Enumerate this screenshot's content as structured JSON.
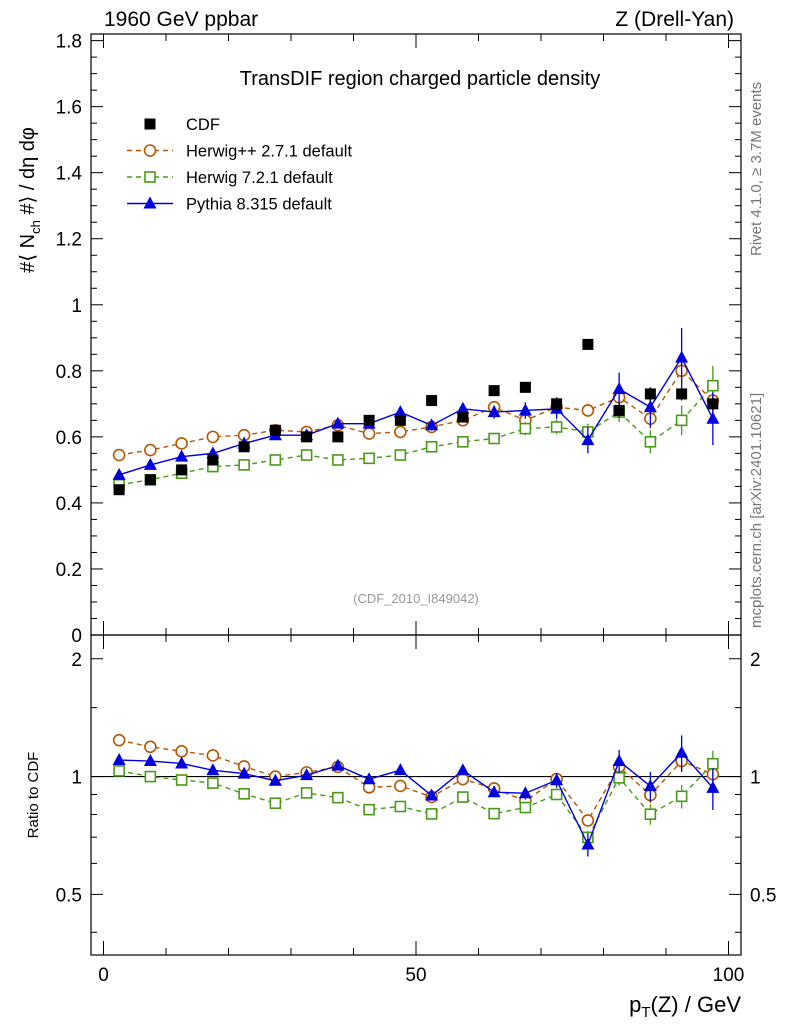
{
  "header": {
    "left": "1960 GeV ppbar",
    "right": "Z (Drell-Yan)"
  },
  "side_text": {
    "rivet": "Rivet 4.1.0, ≥ 3.7M events",
    "mcplots": "mcplots.cern.ch [arXiv:2401.10621]"
  },
  "chart_data": {
    "type": "scatter",
    "title": "TransDIF region charged particle density",
    "analysis_tag": "(CDF_2010_I849042)",
    "xlabel": "p_T(Z) / GeV",
    "ylabel": "#⟨ N_ch #⟩ / dη dφ",
    "ratio_ylabel": "Ratio to CDF",
    "xlim": [
      -2,
      102
    ],
    "ylim": [
      0,
      1.82
    ],
    "ratio_ylim": [
      0.35,
      2.3
    ],
    "x_ticks": [
      0,
      50,
      100
    ],
    "y_ticks": [
      0.2,
      0.4,
      0.6,
      0.8,
      1,
      1.2,
      1.4,
      1.6,
      1.8
    ],
    "ratio_ticks": [
      0.5,
      1,
      2
    ],
    "legend": [
      "CDF",
      "Herwig++ 2.7.1 default",
      "Herwig 7.2.1 default",
      "Pythia 8.315 default"
    ],
    "x": [
      2.5,
      7.5,
      12.5,
      17.5,
      22.5,
      27.5,
      32.5,
      37.5,
      42.5,
      47.5,
      52.5,
      57.5,
      62.5,
      67.5,
      72.5,
      77.5,
      82.5,
      87.5,
      92.5,
      97.5
    ],
    "series": [
      {
        "name": "CDF",
        "color": "#000000",
        "marker": "square-filled",
        "values": [
          0.44,
          0.47,
          0.5,
          0.53,
          0.57,
          0.62,
          0.6,
          0.6,
          0.65,
          0.65,
          0.71,
          0.66,
          0.74,
          0.75,
          0.7,
          0.88,
          0.68,
          0.73,
          0.73,
          0.7
        ],
        "errors": [
          0.01,
          0.01,
          0.01,
          0.01,
          0.01,
          0.01,
          0.01,
          0.01,
          0.01,
          0.01,
          0.01,
          0.01,
          0.01,
          0.01,
          0.02,
          0.01,
          0.02,
          0.02,
          0.02,
          0.02
        ]
      },
      {
        "name": "Herwig++ 2.7.1 default",
        "color": "#b35806",
        "marker": "circle-open",
        "dash": true,
        "values": [
          0.545,
          0.56,
          0.58,
          0.6,
          0.605,
          0.62,
          0.615,
          0.635,
          0.61,
          0.615,
          0.63,
          0.65,
          0.69,
          0.65,
          0.69,
          0.68,
          0.72,
          0.655,
          0.8,
          0.71
        ],
        "errors": [
          0.005,
          0.005,
          0.005,
          0.005,
          0.006,
          0.006,
          0.007,
          0.008,
          0.008,
          0.009,
          0.01,
          0.012,
          0.014,
          0.016,
          0.02,
          0.02,
          0.03,
          0.03,
          0.04,
          0.05
        ]
      },
      {
        "name": "Herwig 7.2.1 default",
        "color": "#4a9a1a",
        "marker": "square-open",
        "dash": true,
        "values": [
          0.455,
          0.47,
          0.49,
          0.51,
          0.515,
          0.53,
          0.545,
          0.53,
          0.535,
          0.545,
          0.57,
          0.585,
          0.595,
          0.625,
          0.63,
          0.615,
          0.675,
          0.585,
          0.65,
          0.755
        ],
        "errors": [
          0.005,
          0.005,
          0.005,
          0.005,
          0.006,
          0.006,
          0.007,
          0.008,
          0.008,
          0.009,
          0.01,
          0.012,
          0.014,
          0.02,
          0.022,
          0.025,
          0.03,
          0.035,
          0.045,
          0.06
        ]
      },
      {
        "name": "Pythia 8.315 default",
        "color": "#0000dd",
        "marker": "triangle-filled",
        "values": [
          0.485,
          0.515,
          0.54,
          0.55,
          0.58,
          0.605,
          0.605,
          0.64,
          0.64,
          0.675,
          0.635,
          0.685,
          0.675,
          0.68,
          0.685,
          0.59,
          0.745,
          0.69,
          0.84,
          0.655
        ],
        "errors": [
          0.006,
          0.006,
          0.007,
          0.007,
          0.008,
          0.009,
          0.01,
          0.011,
          0.012,
          0.014,
          0.016,
          0.018,
          0.02,
          0.025,
          0.03,
          0.04,
          0.05,
          0.06,
          0.09,
          0.08
        ]
      }
    ]
  }
}
